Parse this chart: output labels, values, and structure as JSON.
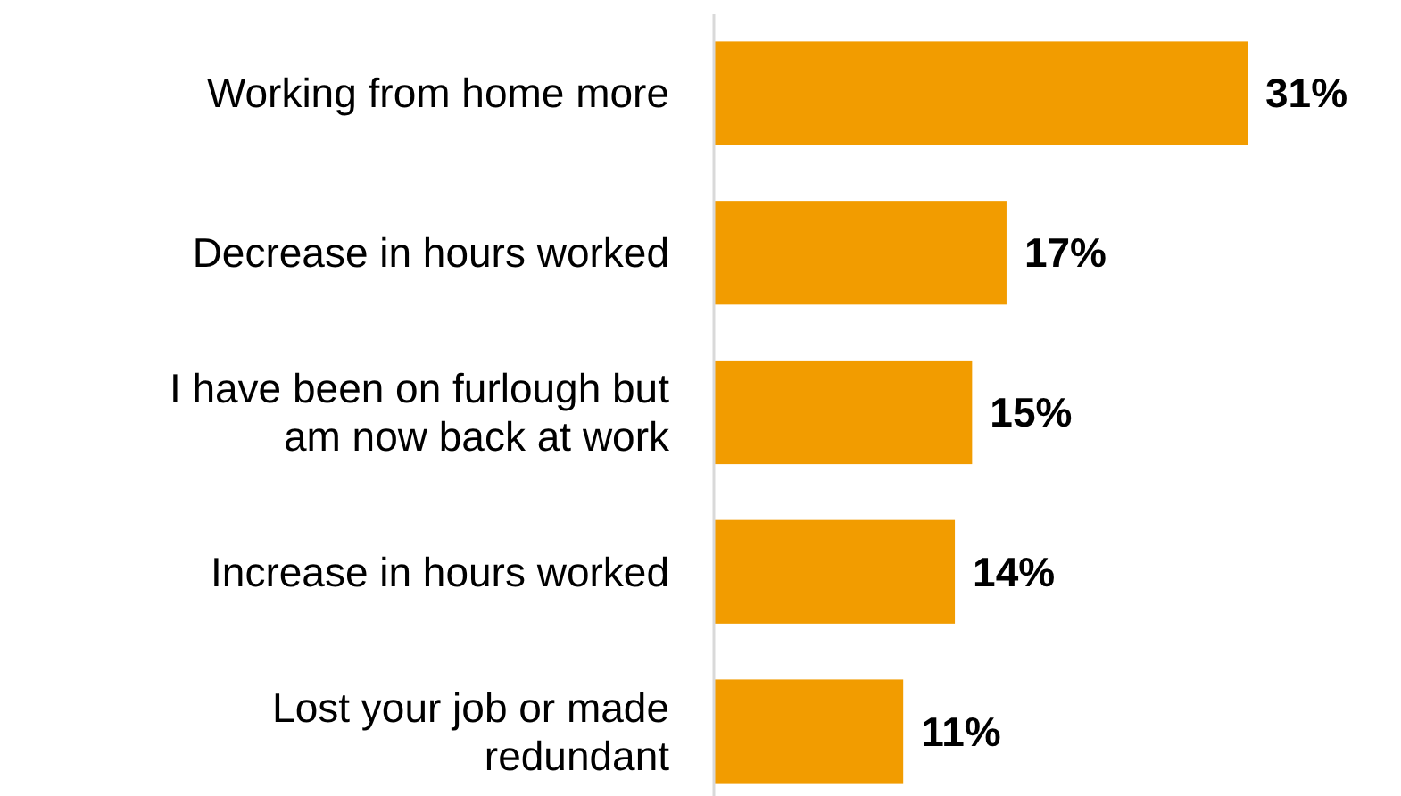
{
  "chart_data": {
    "type": "bar",
    "orientation": "horizontal",
    "categories": [
      "Working from home more",
      "Decrease in hours worked",
      "I have been on furlough but am now back at work",
      "Increase in hours worked",
      "Lost your job or made redundant"
    ],
    "values": [
      31,
      17,
      15,
      14,
      11
    ],
    "value_labels": [
      "31%",
      "17%",
      "15%",
      "14%",
      "11%"
    ],
    "color": "#f29c00",
    "grid": false
  }
}
